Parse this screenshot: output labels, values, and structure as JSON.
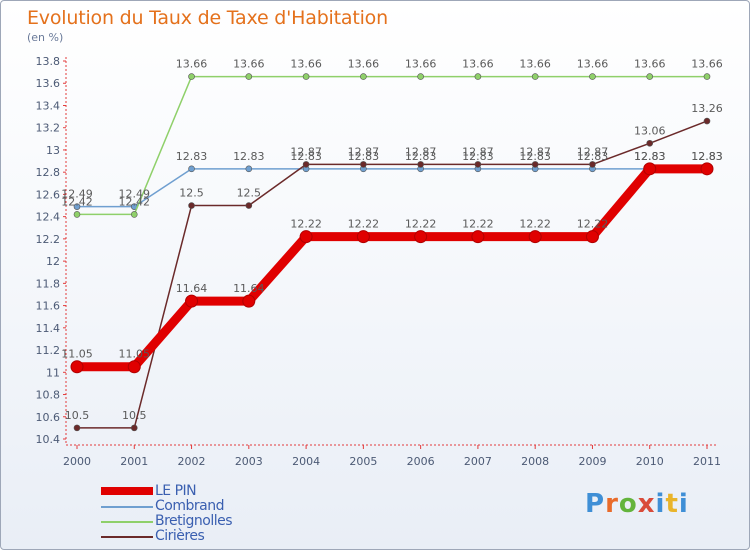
{
  "header": {
    "title": "Evolution du Taux de Taxe d'Habitation",
    "unit": "(en %)"
  },
  "logo": {
    "text": "Proxiti",
    "letters": [
      "P",
      "r",
      "o",
      "x",
      "i",
      "t",
      "i"
    ]
  },
  "chart_data": {
    "type": "line",
    "title": "Evolution du Taux de Taxe d'Habitation",
    "ylabel": "(en %)",
    "xlabel": "",
    "x": [
      "2000",
      "2001",
      "2002",
      "2003",
      "2004",
      "2005",
      "2006",
      "2007",
      "2008",
      "2009",
      "2010",
      "2011"
    ],
    "ylim": [
      10.4,
      13.8
    ],
    "yticks": [
      10.4,
      10.6,
      10.8,
      11,
      11.2,
      11.4,
      11.6,
      11.8,
      12,
      12.2,
      12.4,
      12.6,
      12.8,
      13,
      13.2,
      13.4,
      13.6,
      13.8
    ],
    "ytick_labels": [
      "10.4",
      "10.6",
      "10.8",
      "11",
      "11.2",
      "11.4",
      "11.6",
      "11.8",
      "12",
      "12.2",
      "12.4",
      "12.6",
      "12.8",
      "13",
      "13.2",
      "13.4",
      "13.6",
      "13.8"
    ],
    "grid": false,
    "legend_position": "bottom-left",
    "series": [
      {
        "name": "LE PIN",
        "color": "#e00000",
        "values": [
          11.05,
          11.05,
          11.64,
          11.64,
          12.22,
          12.22,
          12.22,
          12.22,
          12.22,
          12.22,
          12.83,
          12.83
        ],
        "labels": [
          "11.05",
          "11.05",
          "11.64",
          "11.64",
          "12.22",
          "12.22",
          "12.22",
          "12.22",
          "12.22",
          "12.22",
          "12.83",
          "12.83"
        ]
      },
      {
        "name": "Combrand",
        "color": "#6f9fd0",
        "values": [
          12.49,
          12.49,
          12.83,
          12.83,
          12.83,
          12.83,
          12.83,
          12.83,
          12.83,
          12.83,
          12.83,
          12.83
        ],
        "labels": [
          "12.49",
          "12.49",
          "12.83",
          "12.83",
          "12.83",
          "12.83",
          "12.83",
          "12.83",
          "12.83",
          "12.83",
          "12.83",
          "12.83"
        ]
      },
      {
        "name": "Bretignolles",
        "color": "#8fd06a",
        "values": [
          12.42,
          12.42,
          13.66,
          13.66,
          13.66,
          13.66,
          13.66,
          13.66,
          13.66,
          13.66,
          13.66,
          13.66
        ],
        "labels": [
          "12.42",
          "12.42",
          "13.66",
          "13.66",
          "13.66",
          "13.66",
          "13.66",
          "13.66",
          "13.66",
          "13.66",
          "13.66",
          "13.66"
        ]
      },
      {
        "name": "Cirières",
        "color": "#6b2a2a",
        "values": [
          10.5,
          10.5,
          12.5,
          12.5,
          12.87,
          12.87,
          12.87,
          12.87,
          12.87,
          12.87,
          13.06,
          13.26
        ],
        "labels": [
          "10.5",
          "10.5",
          "12.5",
          "12.5",
          "12.87",
          "12.87",
          "12.87",
          "12.87",
          "12.87",
          "12.87",
          "13.06",
          "13.26"
        ]
      }
    ]
  }
}
